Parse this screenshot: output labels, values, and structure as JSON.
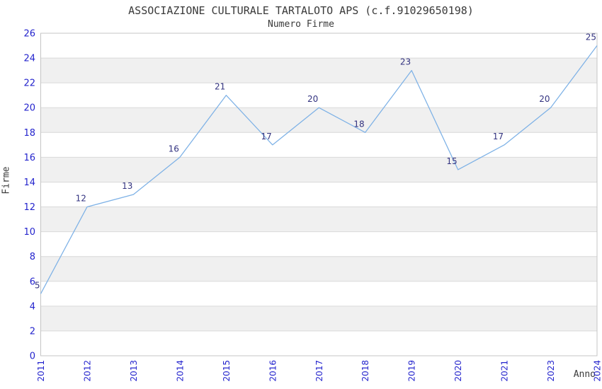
{
  "chart_data": {
    "type": "line",
    "title": "ASSOCIAZIONE CULTURALE TARTALOTO APS (c.f.91029650198)",
    "subtitle": "Numero Firme",
    "xlabel": "Anno",
    "ylabel": "Firme",
    "x": [
      "2011",
      "2012",
      "2013",
      "2014",
      "2015",
      "2016",
      "2017",
      "2018",
      "2019",
      "2020",
      "2021",
      "2023",
      "2024"
    ],
    "values": [
      5,
      12,
      13,
      16,
      21,
      17,
      20,
      18,
      23,
      15,
      17,
      20,
      25
    ],
    "ylim": [
      0,
      26
    ],
    "ytick_step": 2,
    "grid": true,
    "legend": "none",
    "band_fill": "alternating horizontal stripes",
    "colors": {
      "line": "#7db1e6",
      "tick_label": "#2424cd",
      "point_label": "#333380",
      "band": "#f0f0f0",
      "grid": "#d9d9d9",
      "border": "#c4c4c4",
      "text": "#3a3a3a",
      "background": "#ffffff"
    }
  }
}
